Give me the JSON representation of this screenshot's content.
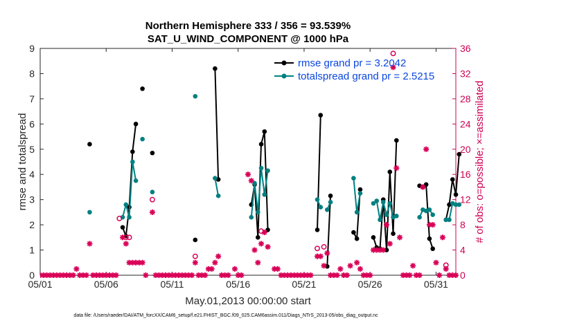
{
  "chart_data": {
    "type": "line",
    "title": "Northern Hemisphere 333 / 356 = 93.539%",
    "subtitle": "SAT_U_WIND_COMPONENT @ 1000 hPa",
    "xlabel": "May.01,2013 00:00:00 start",
    "ylabel": "rmse and totalspread",
    "ylabel_right": "# of obs: o=possible; ×=assimilated",
    "xlim": [
      0,
      31.5
    ],
    "ylim": [
      0,
      9
    ],
    "ylim_right": [
      0,
      36
    ],
    "x_ticks": [
      0,
      5,
      10,
      15,
      20,
      25,
      30
    ],
    "x_tick_labels": [
      "05/01",
      "05/06",
      "05/11",
      "05/16",
      "05/21",
      "05/26",
      "05/31"
    ],
    "y_ticks": [
      "0",
      "1",
      "2",
      "3",
      "4",
      "5",
      "6",
      "7",
      "8",
      "9"
    ],
    "y_ticks_right": [
      "0",
      "4",
      "8",
      "12",
      "16",
      "20",
      "24",
      "28",
      "32",
      "36"
    ],
    "legend": {
      "position": "top-right",
      "entries": [
        {
          "name": "rmse grand pr = 3.2042",
          "color": "#000000"
        },
        {
          "name": "totalspread grand pr = 2.5215",
          "color": "#008080"
        }
      ]
    },
    "series": [
      {
        "name": "rmse",
        "color": "#000000",
        "points": [
          [
            3.75,
            5.2
          ],
          null,
          [
            6.25,
            1.9
          ],
          [
            6.5,
            1.55
          ],
          [
            6.75,
            2.7
          ],
          [
            7.0,
            4.9
          ],
          [
            7.25,
            6.0
          ],
          null,
          [
            7.75,
            7.4
          ],
          null,
          [
            8.5,
            4.85
          ],
          null,
          [
            11.75,
            1.4
          ],
          null,
          [
            13.25,
            8.2
          ],
          [
            13.5,
            3.8
          ],
          null,
          [
            16.0,
            2.8
          ],
          [
            16.25,
            3.6
          ],
          [
            16.5,
            1.5
          ],
          [
            16.75,
            5.2
          ],
          [
            17.0,
            5.7
          ],
          [
            17.25,
            1.8
          ],
          null,
          [
            21.0,
            1.8
          ],
          [
            21.25,
            6.35
          ],
          null,
          [
            21.75,
            0.35
          ],
          [
            22.0,
            3.15
          ],
          null,
          [
            23.75,
            1.7
          ],
          [
            24.0,
            1.45
          ],
          [
            24.25,
            3.4
          ],
          null,
          [
            25.25,
            1.5
          ],
          [
            25.5,
            1.1
          ],
          [
            25.75,
            1.05
          ],
          [
            26.0,
            3.0
          ],
          [
            26.25,
            1.0
          ],
          [
            26.5,
            4.1
          ],
          [
            26.75,
            1.65
          ],
          [
            27.0,
            5.35
          ],
          null,
          [
            28.75,
            3.55
          ],
          [
            29.0,
            3.5
          ],
          [
            29.25,
            3.6
          ],
          [
            29.5,
            1.45
          ],
          [
            29.75,
            1.05
          ],
          null,
          [
            30.75,
            2.2
          ],
          [
            31.0,
            2.8
          ],
          [
            31.25,
            3.8
          ],
          [
            31.5,
            3.2
          ],
          [
            31.75,
            4.8
          ]
        ]
      },
      {
        "name": "totalspread",
        "color": "#008080",
        "points": [
          [
            3.75,
            2.5
          ],
          null,
          [
            6.25,
            2.3
          ],
          [
            6.5,
            2.8
          ],
          [
            6.75,
            2.3
          ],
          [
            7.0,
            4.5
          ],
          [
            7.25,
            3.75
          ],
          null,
          [
            7.75,
            5.4
          ],
          null,
          [
            8.5,
            3.3
          ],
          null,
          [
            11.75,
            7.1
          ],
          null,
          [
            13.25,
            3.85
          ],
          [
            13.5,
            3.15
          ],
          null,
          [
            16.0,
            2.3
          ],
          [
            16.25,
            3.65
          ],
          [
            16.5,
            2.5
          ],
          [
            16.75,
            4.25
          ],
          [
            17.0,
            3.2
          ],
          [
            17.25,
            4.15
          ],
          null,
          [
            21.0,
            3.0
          ],
          [
            21.25,
            2.7
          ],
          null,
          [
            21.75,
            2.6
          ],
          [
            22.0,
            2.9
          ],
          null,
          [
            23.75,
            3.85
          ],
          [
            24.0,
            2.5
          ],
          [
            24.25,
            3.25
          ],
          null,
          [
            25.25,
            2.85
          ],
          [
            25.5,
            2.95
          ],
          [
            25.75,
            2.2
          ],
          [
            26.0,
            2.9
          ],
          [
            26.25,
            2.4
          ],
          [
            26.5,
            2.85
          ],
          [
            26.75,
            2.3
          ],
          [
            27.0,
            2.35
          ],
          null,
          [
            28.75,
            2.3
          ],
          [
            29.0,
            2.6
          ],
          [
            29.25,
            2.55
          ],
          [
            29.5,
            2.6
          ],
          [
            29.75,
            2.4
          ],
          null,
          [
            30.75,
            2.2
          ],
          [
            31.0,
            2.2
          ],
          [
            31.25,
            2.85
          ],
          [
            31.5,
            2.8
          ],
          [
            31.75,
            2.8
          ]
        ]
      },
      {
        "name": "possible",
        "color": "#d90057",
        "marker": "circle",
        "points": [
          [
            6.0,
            9
          ],
          [
            6.5,
            6
          ],
          [
            6.75,
            6
          ],
          [
            8.5,
            12
          ],
          [
            11.75,
            3
          ],
          [
            16.75,
            7
          ],
          [
            21.0,
            4.25
          ],
          [
            21.5,
            4.5
          ],
          [
            26.75,
            35.2
          ],
          [
            30.75,
            1.6
          ]
        ]
      },
      {
        "name": "assimilated",
        "color": "#d90057",
        "marker": "star",
        "points": [
          [
            0,
            0
          ],
          [
            0.25,
            0
          ],
          [
            0.5,
            0
          ],
          [
            0.75,
            0
          ],
          [
            1.0,
            0
          ],
          [
            1.25,
            0
          ],
          [
            1.5,
            0
          ],
          [
            1.75,
            0
          ],
          [
            2.0,
            0
          ],
          [
            2.25,
            0
          ],
          [
            2.5,
            0
          ],
          [
            2.75,
            1.0
          ],
          [
            3.0,
            0
          ],
          [
            3.25,
            0
          ],
          [
            3.5,
            0
          ],
          [
            3.75,
            5.0
          ],
          [
            4.0,
            0
          ],
          [
            4.25,
            0
          ],
          [
            4.5,
            0
          ],
          [
            4.75,
            0
          ],
          [
            5.0,
            0
          ],
          [
            5.25,
            0
          ],
          [
            5.5,
            0
          ],
          [
            5.75,
            0
          ],
          [
            6.25,
            6.0
          ],
          [
            6.5,
            5.0
          ],
          [
            6.75,
            2.0
          ],
          [
            7.0,
            2.0
          ],
          [
            7.25,
            2.0
          ],
          [
            7.5,
            2.0
          ],
          [
            7.75,
            2.0
          ],
          [
            8.0,
            0
          ],
          [
            8.5,
            10.0
          ],
          [
            8.75,
            0
          ],
          [
            9.0,
            0
          ],
          [
            9.25,
            0
          ],
          [
            9.5,
            0
          ],
          [
            9.75,
            0
          ],
          [
            10.0,
            0
          ],
          [
            10.25,
            0
          ],
          [
            10.5,
            0
          ],
          [
            10.75,
            0
          ],
          [
            11.0,
            0
          ],
          [
            11.25,
            0
          ],
          [
            11.5,
            0
          ],
          [
            11.75,
            2.0
          ],
          [
            12.0,
            0
          ],
          [
            12.25,
            0
          ],
          [
            12.5,
            0
          ],
          [
            12.75,
            1.0
          ],
          [
            13.0,
            1.0
          ],
          [
            13.25,
            2.0
          ],
          [
            13.5,
            3.0
          ],
          [
            13.75,
            0
          ],
          [
            14.0,
            0
          ],
          [
            14.25,
            0
          ],
          [
            14.75,
            1.0
          ],
          [
            15.0,
            0
          ],
          [
            15.25,
            0
          ],
          [
            15.75,
            16.0
          ],
          [
            16.0,
            15.0
          ],
          [
            16.25,
            4.0
          ],
          [
            16.5,
            2.0
          ],
          [
            16.75,
            5.0
          ],
          [
            17.0,
            6.8
          ],
          [
            17.25,
            4.5
          ],
          [
            17.75,
            1.0
          ],
          [
            18.0,
            1.0
          ],
          [
            18.25,
            0
          ],
          [
            18.5,
            0
          ],
          [
            18.75,
            0
          ],
          [
            19.0,
            0
          ],
          [
            19.25,
            0
          ],
          [
            19.5,
            0
          ],
          [
            19.75,
            0
          ],
          [
            20.0,
            0
          ],
          [
            20.25,
            0
          ],
          [
            20.5,
            0
          ],
          [
            21.0,
            3.0
          ],
          [
            21.25,
            3.0
          ],
          [
            21.5,
            1.5
          ],
          [
            21.75,
            3.5
          ],
          [
            22.0,
            0
          ],
          [
            22.25,
            0
          ],
          [
            22.5,
            0
          ],
          [
            22.75,
            1.0
          ],
          [
            23.0,
            0
          ],
          [
            23.25,
            0
          ],
          [
            23.5,
            1.5
          ],
          [
            24.0,
            2.0
          ],
          [
            24.25,
            1.0
          ],
          [
            24.5,
            0
          ],
          [
            24.75,
            0
          ],
          [
            25.0,
            0
          ],
          [
            25.25,
            4.0
          ],
          [
            25.5,
            4.0
          ],
          [
            25.75,
            4.0
          ],
          [
            26.0,
            4.0
          ],
          [
            26.25,
            8.0
          ],
          [
            26.5,
            5.0
          ],
          [
            26.75,
            33.0
          ],
          [
            27.0,
            17.0
          ],
          [
            27.25,
            6.0
          ],
          [
            27.5,
            0
          ],
          [
            27.75,
            0
          ],
          [
            28.0,
            0
          ],
          [
            28.25,
            1.5
          ],
          [
            28.5,
            0
          ],
          [
            28.75,
            0
          ],
          [
            29.0,
            14.0
          ],
          [
            29.25,
            20.0
          ],
          [
            29.5,
            8.0
          ],
          [
            29.75,
            8.0
          ],
          [
            30.0,
            2.0
          ],
          [
            30.25,
            0
          ],
          [
            30.5,
            6.0
          ],
          [
            30.75,
            1.0
          ],
          [
            31.0,
            0
          ],
          [
            31.25,
            0
          ],
          [
            31.5,
            0
          ]
        ]
      }
    ]
  },
  "page": {
    "footnote": "data file: /Users/raeder/DAI/ATM_forcXX/CAM6_setup/f.e21.FHIST_BGC.f09_025.CAM6assim.011/Diags_NTrS_2013-05/obs_diag_output.nc"
  },
  "colors": {
    "rmse": "#000000",
    "totalspread": "#008080",
    "obs": "#d90057",
    "legend_text": "#0a46e0",
    "right_axis": "#cc0052"
  }
}
